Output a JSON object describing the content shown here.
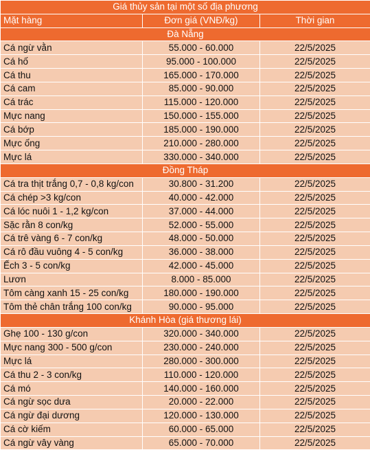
{
  "title": "Giá thủy sản tại một số địa phương",
  "headers": [
    "Mặt hàng",
    "Đơn giá (VNĐ/kg)",
    "Thời gian"
  ],
  "sections": [
    {
      "name": "Đà Nẵng",
      "rows": [
        {
          "item": "Cá ngừ vằn",
          "price": "55.000 - 60.000",
          "date": "22/5/2025"
        },
        {
          "item": "Cá hố",
          "price": "95.000 - 100.000",
          "date": "22/5/2025"
        },
        {
          "item": "Cá thu",
          "price": "165.000 - 170.000",
          "date": "22/5/2025"
        },
        {
          "item": "Cá cam",
          "price": "85.000 - 90.000",
          "date": "22/5/2025"
        },
        {
          "item": "Cá trác",
          "price": "115.000 - 120.000",
          "date": "22/5/2025"
        },
        {
          "item": "Mực nang",
          "price": "150.000 - 155.000",
          "date": "22/5/2025"
        },
        {
          "item": "Cá bớp",
          "price": "185.000 - 190.000",
          "date": "22/5/2025"
        },
        {
          "item": "Mực ống",
          "price": "210.000 - 280.000",
          "date": "22/5/2025"
        },
        {
          "item": "Mực lá",
          "price": "330.000 - 340.000",
          "date": "22/5/2025"
        }
      ]
    },
    {
      "name": "Đồng Tháp",
      "rows": [
        {
          "item": "Cá tra thịt trắng 0,7 - 0,8 kg/con",
          "price": "30.800 - 31.200",
          "date": "22/5/2025"
        },
        {
          "item": "Cá chép >3 kg/con",
          "price": "40.000 - 42.000",
          "date": "22/5/2025"
        },
        {
          "item": "Cá lóc nuôi 1 - 1,2 kg/con",
          "price": "37.000 - 44.000",
          "date": "22/5/2025"
        },
        {
          "item": "Sặc rằn 8 con/kg",
          "price": "52.000 - 55.000",
          "date": "22/5/2025"
        },
        {
          "item": "Cá trê vàng 6 - 7 con/kg",
          "price": "48.000 - 50.000",
          "date": "22/5/2025"
        },
        {
          "item": "Cá rô đầu vuông 4 - 5 con/kg",
          "price": "36.000 - 38.000",
          "date": "22/5/2025"
        },
        {
          "item": "Ếch 3 - 5 con/kg",
          "price": "42.000 - 45.000",
          "date": "22/5/2025"
        },
        {
          "item": "Lươn",
          "price": "8.000 - 85.000",
          "date": "22/5/2025"
        },
        {
          "item": "Tôm càng xanh 15 - 25 con/kg",
          "price": "180.000 - 190.000",
          "date": "22/5/2025"
        },
        {
          "item": "Tôm thẻ chân trắng 100 con/kg",
          "price": "90.000 - 95.000",
          "date": "22/5/2025"
        }
      ]
    },
    {
      "name": "Khánh Hòa (giá thương lái)",
      "rows": [
        {
          "item": "Ghẹ 100 - 130 g/con",
          "price": "320.000 - 340.000",
          "date": "22/5/2025"
        },
        {
          "item": "Mực nang 300 - 500 g/con",
          "price": "230.000 - 240.000",
          "date": "22/5/2025"
        },
        {
          "item": "Mực lá",
          "price": "280.000 - 300.000",
          "date": "22/5/2025"
        },
        {
          "item": "Cá thu 2 - 3 con/kg",
          "price": "110.000 - 120.000",
          "date": "22/5/2025"
        },
        {
          "item": "Cá mó",
          "price": "140.000 - 160.000",
          "date": "22/5/2025"
        },
        {
          "item": "Cá ngừ sọc dưa",
          "price": "20.000 - 22.000",
          "date": "22/5/2025"
        },
        {
          "item": "Cá ngừ đại dương",
          "price": "120.000 - 130.000",
          "date": "22/5/2025"
        },
        {
          "item": "Cá cờ kiếm",
          "price": "60.000 - 65.000",
          "date": "22/5/2025"
        },
        {
          "item": "Cá ngừ vây vàng",
          "price": "65.000 - 70.000",
          "date": "22/5/2025"
        }
      ]
    }
  ],
  "colors": {
    "header": "#ee6a2f",
    "row": "#f5cbb0",
    "border": "#ffffff"
  }
}
